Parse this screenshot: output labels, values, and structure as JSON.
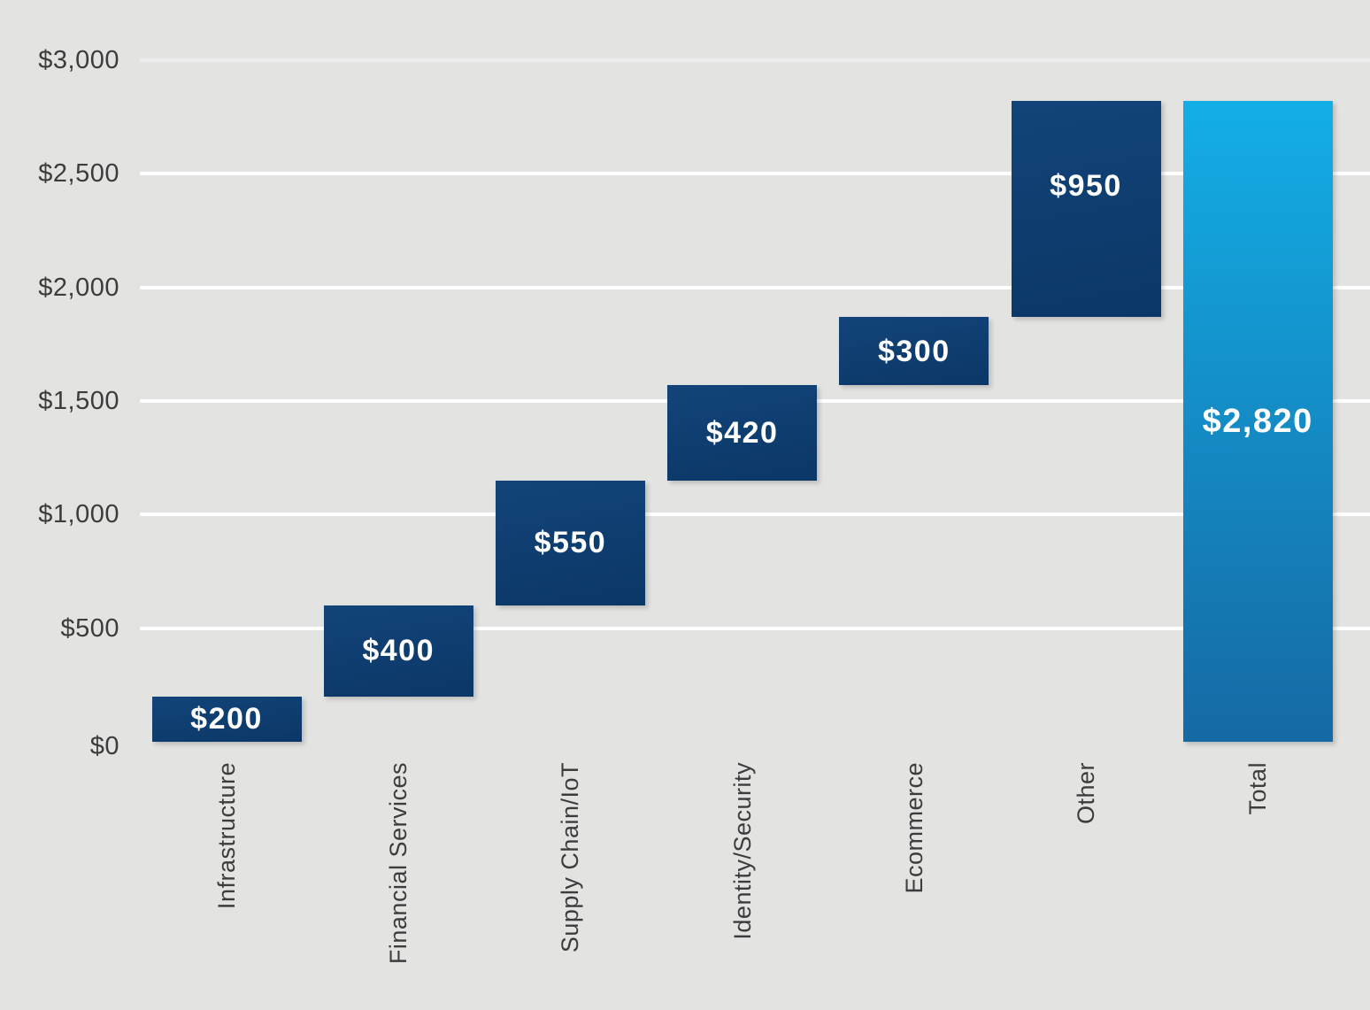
{
  "chart_data": {
    "type": "bar",
    "subtype": "waterfall",
    "title": "",
    "categories": [
      "Infrastructure",
      "Financial Services",
      "Supply Chain/IoT",
      "Identity/Security",
      "Ecommerce",
      "Other",
      "Total"
    ],
    "steps": [
      {
        "label": "Infrastructure",
        "value": 200,
        "display": "$200",
        "kind": "segment"
      },
      {
        "label": "Financial Services",
        "value": 400,
        "display": "$400",
        "kind": "segment"
      },
      {
        "label": "Supply Chain/IoT",
        "value": 550,
        "display": "$550",
        "kind": "segment"
      },
      {
        "label": "Identity/Security",
        "value": 420,
        "display": "$420",
        "kind": "segment"
      },
      {
        "label": "Ecommerce",
        "value": 300,
        "display": "$300",
        "kind": "segment"
      },
      {
        "label": "Other",
        "value": 950,
        "display": "$950",
        "kind": "segment",
        "label_offset_y": -26
      },
      {
        "label": "Total",
        "value": 2820,
        "display": "$2,820",
        "kind": "total"
      }
    ],
    "y_axis": {
      "min": 0,
      "max": 3000,
      "tick_step": 500,
      "tick_labels": [
        "$0",
        "$500",
        "$1,000",
        "$1,500",
        "$2,000",
        "$2,500",
        "$3,000"
      ]
    },
    "legend": "none",
    "grid": "horizontal-white-lines",
    "colors": {
      "background": "#e3e3e2",
      "segment_bar_top": "#12447a",
      "segment_bar_bottom": "#0b3766",
      "total_bar_top": "#14aee6",
      "total_bar_bottom": "#1569a4",
      "gridline": "#ffffff",
      "axis_text": "#3c3c3c",
      "value_text": "#ffffff"
    }
  }
}
